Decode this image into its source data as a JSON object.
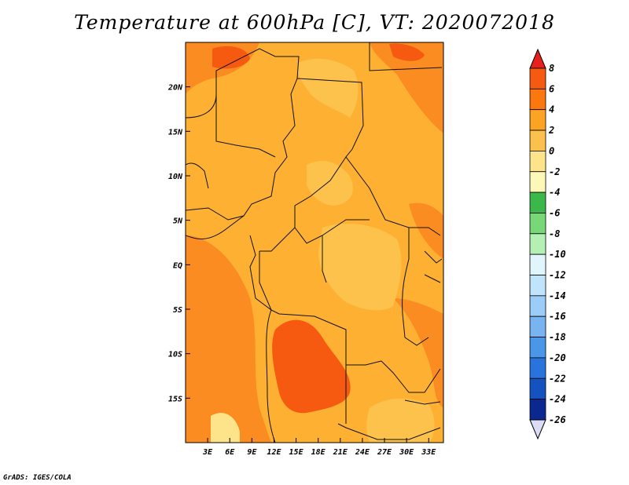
{
  "title": "Temperature at 600hPa [C], VT: 2020072018",
  "credit": "GrADS: IGES/COLA",
  "map": {
    "lon_range": [
      0,
      35
    ],
    "lat_range": [
      -20,
      25
    ],
    "lon_ticks": [
      {
        "value": 3,
        "label": "3E"
      },
      {
        "value": 6,
        "label": "6E"
      },
      {
        "value": 9,
        "label": "9E"
      },
      {
        "value": 12,
        "label": "12E"
      },
      {
        "value": 15,
        "label": "15E"
      },
      {
        "value": 18,
        "label": "18E"
      },
      {
        "value": 21,
        "label": "21E"
      },
      {
        "value": 24,
        "label": "24E"
      },
      {
        "value": 27,
        "label": "27E"
      },
      {
        "value": 30,
        "label": "30E"
      },
      {
        "value": 33,
        "label": "33E"
      }
    ],
    "lat_ticks": [
      {
        "value": 20,
        "label": "20N"
      },
      {
        "value": 15,
        "label": "15N"
      },
      {
        "value": 10,
        "label": "10N"
      },
      {
        "value": 5,
        "label": "5N"
      },
      {
        "value": 0,
        "label": "EQ"
      },
      {
        "value": -5,
        "label": "5S"
      },
      {
        "value": -10,
        "label": "10S"
      },
      {
        "value": -15,
        "label": "15S"
      }
    ]
  },
  "legend": {
    "levels": [
      "8",
      "6",
      "4",
      "2",
      "0",
      "-2",
      "-4",
      "-6",
      "-8",
      "-10",
      "-12",
      "-14",
      "-16",
      "-18",
      "-20",
      "-22",
      "-24",
      "-26"
    ],
    "top_color": "#e8201c",
    "bottom_color": "#dcdcf6",
    "colors": [
      "#ef3a14",
      "#f55a10",
      "#fb780e",
      "#fda324",
      "#fbc14c",
      "#fde48a",
      "#fdf8b8",
      "#3cb84a",
      "#78d878",
      "#b4f0b4",
      "#e0f6fc",
      "#c0e4fc",
      "#9ccdf8",
      "#78b4f0",
      "#4a96e8",
      "#2874dc",
      "#1452c0",
      "#0a2890",
      "#0a0a70"
    ]
  }
}
